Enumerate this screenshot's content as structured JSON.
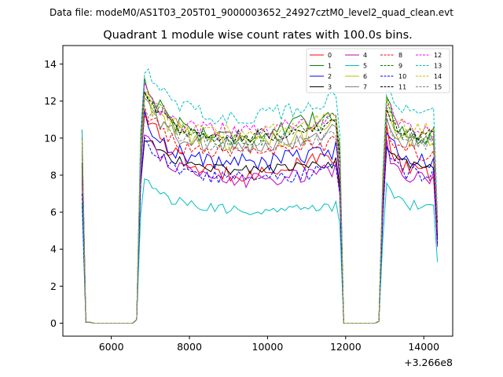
{
  "chart_data": {
    "type": "line",
    "suptitle": "Data file: modeM0/AS1T03_205T01_9000003652_24927cztM0_level2_quad_clean.evt",
    "title": "Quadrant 1 module wise count rates with 100.0s bins.",
    "xlabel": "",
    "ylabel": "",
    "x_offset_label": "+3.266e8",
    "xlim": [
      4760,
      14740
    ],
    "ylim": [
      -0.7,
      15.0
    ],
    "xticks": [
      6000,
      8000,
      10000,
      12000,
      14000
    ],
    "yticks": [
      0,
      2,
      4,
      6,
      8,
      10,
      12,
      14
    ],
    "xtick_labels": [
      "6000",
      "8000",
      "10000",
      "12000",
      "14000"
    ],
    "ytick_labels": [
      "0",
      "2",
      "4",
      "6",
      "8",
      "10",
      "12",
      "14"
    ],
    "legend_position": "top-right",
    "segments": [
      {
        "start": 5250,
        "end": 5450,
        "kind": "edge"
      },
      {
        "start": 5450,
        "end": 6650,
        "kind": "gap"
      },
      {
        "start": 6650,
        "end": 11850,
        "kind": "orbit"
      },
      {
        "start": 11850,
        "end": 12850,
        "kind": "gap"
      },
      {
        "start": 12850,
        "end": 14350,
        "kind": "orbit"
      }
    ],
    "series": [
      {
        "name": "0",
        "color": "#ff0000",
        "dash": false,
        "level": 7.8,
        "peak": 12.2,
        "end": 8.9,
        "noise": 0.45
      },
      {
        "name": "1",
        "color": "#008000",
        "dash": false,
        "level": 9.8,
        "peak": 13.6,
        "end": 11.2,
        "noise": 0.5
      },
      {
        "name": "2",
        "color": "#0000ff",
        "dash": false,
        "level": 8.5,
        "peak": 11.5,
        "end": 9.2,
        "noise": 0.5
      },
      {
        "name": "3",
        "color": "#000000",
        "dash": false,
        "level": 8.2,
        "peak": 10.4,
        "end": 8.6,
        "noise": 0.3
      },
      {
        "name": "4",
        "color": "#bf00bf",
        "dash": false,
        "level": 7.5,
        "peak": 10.8,
        "end": 8.2,
        "noise": 0.4
      },
      {
        "name": "5",
        "color": "#00bfbf",
        "dash": false,
        "level": 6.0,
        "peak": 8.1,
        "end": 6.3,
        "noise": 0.3
      },
      {
        "name": "6",
        "color": "#bfbf00",
        "dash": false,
        "level": 9.6,
        "peak": 12.6,
        "end": 10.4,
        "noise": 0.5
      },
      {
        "name": "7",
        "color": "#808080",
        "dash": false,
        "level": 9.4,
        "peak": 12.2,
        "end": 10.2,
        "noise": 0.45
      },
      {
        "name": "8",
        "color": "#ff0000",
        "dash": true,
        "level": 8.9,
        "peak": 12.0,
        "end": 9.6,
        "noise": 0.45
      },
      {
        "name": "9",
        "color": "#008000",
        "dash": true,
        "level": 9.7,
        "peak": 13.2,
        "end": 10.8,
        "noise": 0.45
      },
      {
        "name": "10",
        "color": "#0000ff",
        "dash": true,
        "level": 7.7,
        "peak": 10.4,
        "end": 8.2,
        "noise": 0.4
      },
      {
        "name": "11",
        "color": "#000000",
        "dash": true,
        "level": 9.9,
        "peak": 12.7,
        "end": 10.6,
        "noise": 0.4
      },
      {
        "name": "12",
        "color": "#ff00ff",
        "dash": true,
        "level": 10.2,
        "peak": 13.0,
        "end": 10.9,
        "noise": 0.45
      },
      {
        "name": "13",
        "color": "#00bfbf",
        "dash": true,
        "level": 10.9,
        "peak": 14.3,
        "end": 12.0,
        "noise": 0.45
      },
      {
        "name": "14",
        "color": "#bfbf00",
        "dash": true,
        "level": 10.1,
        "peak": 12.9,
        "end": 10.9,
        "noise": 0.45
      },
      {
        "name": "15",
        "color": "#808080",
        "dash": true,
        "level": 9.4,
        "peak": 12.1,
        "end": 10.0,
        "noise": 0.4
      }
    ]
  }
}
